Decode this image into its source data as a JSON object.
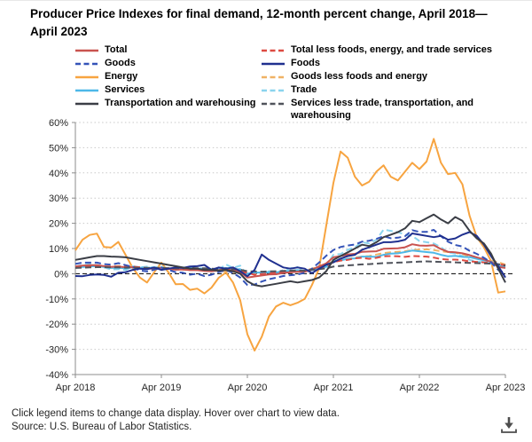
{
  "title": "Producer Price Indexes for final demand, 12-month percent change, April 2018—April 2023",
  "footer": {
    "note": "Click legend items to change data display. Hover over chart to view data.",
    "source": "Source: U.S. Bureau of Labor Statistics.",
    "download_icon": "download-icon"
  },
  "chart_data": {
    "type": "line",
    "title": "Producer Price Indexes for final demand, 12-month percent change, April 2018—April 2023",
    "xlabel": "",
    "ylabel": "12-month percent change",
    "x_unit": "monthly, Apr 2018 through Apr 2023 (61 points per series)",
    "x_ticks": [
      "Apr 2018",
      "Apr 2019",
      "Apr 2020",
      "Apr 2021",
      "Apr 2022",
      "Apr 2023"
    ],
    "y_ticks": [
      "60%",
      "50%",
      "40%",
      "30%",
      "20%",
      "10%",
      "0%",
      "-10%",
      "-20%",
      "-30%",
      "-40%"
    ],
    "ylim": [
      -40,
      60
    ],
    "grid": "dotted horizontal gridlines every 10%",
    "zero_line": "black dashed line at 0%",
    "legend_position": "top, two columns",
    "legend_columns": {
      "col1": [
        "total",
        "goods",
        "energy",
        "services",
        "transportation"
      ],
      "col2": [
        "total_less",
        "foods",
        "goods_less",
        "trade",
        "services_less"
      ]
    },
    "draw_order": [
      "energy",
      "goods_less",
      "trade",
      "services",
      "total_less",
      "total",
      "goods",
      "services_less",
      "foods",
      "transportation"
    ],
    "series": [
      {
        "key": "total",
        "name": "Total",
        "color": "#c9534f",
        "dashed": false,
        "values": [
          2.9,
          3.2,
          3.4,
          3.4,
          3.0,
          2.7,
          2.9,
          2.5,
          2.6,
          2.0,
          1.9,
          2.1,
          2.4,
          1.9,
          1.6,
          1.7,
          1.4,
          1.4,
          1.1,
          1.0,
          1.4,
          2.0,
          1.2,
          0.7,
          -1.5,
          -1.1,
          -0.7,
          -0.3,
          -0.2,
          0.3,
          0.6,
          0.8,
          0.8,
          1.6,
          2.9,
          4.1,
          6.5,
          7.0,
          7.6,
          7.9,
          8.7,
          8.8,
          8.9,
          9.9,
          10.0,
          10.1,
          10.5,
          11.7,
          11.2,
          11.1,
          11.3,
          9.8,
          8.7,
          8.5,
          8.1,
          7.4,
          6.5,
          5.7,
          4.7,
          2.7,
          2.3
        ]
      },
      {
        "key": "total_less",
        "name": "Total less foods, energy, and trade services",
        "color": "#dd4b42",
        "dashed": true,
        "values": [
          2.9,
          3.0,
          3.0,
          2.9,
          2.9,
          2.9,
          2.8,
          2.8,
          2.8,
          2.5,
          2.3,
          2.0,
          2.2,
          2.2,
          2.1,
          1.9,
          1.9,
          1.7,
          1.5,
          1.3,
          1.5,
          1.5,
          1.4,
          1.0,
          0.3,
          -0.4,
          -0.1,
          0.1,
          0.3,
          0.7,
          0.8,
          0.9,
          1.1,
          1.8,
          2.2,
          3.1,
          4.6,
          5.2,
          5.5,
          6.1,
          6.3,
          5.9,
          6.3,
          6.9,
          7.0,
          6.9,
          6.7,
          7.0,
          6.9,
          6.8,
          6.4,
          5.8,
          5.6,
          5.6,
          5.4,
          4.9,
          4.7,
          4.5,
          4.4,
          3.7,
          3.4
        ]
      },
      {
        "key": "goods",
        "name": "Goods",
        "color": "#3453b8",
        "dashed": true,
        "values": [
          3.9,
          4.4,
          4.4,
          4.4,
          3.8,
          3.6,
          4.2,
          3.4,
          2.7,
          1.3,
          0.9,
          1.6,
          2.4,
          1.5,
          0.6,
          0.4,
          -0.4,
          0.0,
          -0.9,
          -0.4,
          0.7,
          1.4,
          0.3,
          -1.5,
          -4.5,
          -4.3,
          -3.1,
          -2.2,
          -1.6,
          -0.9,
          -0.6,
          -0.3,
          0.4,
          2.0,
          4.4,
          7.1,
          9.4,
          10.6,
          11.2,
          11.6,
          12.7,
          13.1,
          13.8,
          14.9,
          14.1,
          14.3,
          14.9,
          17.3,
          16.6,
          16.6,
          17.4,
          14.9,
          12.7,
          11.4,
          10.8,
          9.1,
          7.9,
          6.3,
          4.5,
          1.5,
          0.2
        ]
      },
      {
        "key": "foods",
        "name": "Foods",
        "color": "#20308f",
        "dashed": false,
        "values": [
          -0.9,
          -1.0,
          -0.5,
          -0.3,
          -0.5,
          -1.2,
          0.4,
          0.6,
          1.5,
          2.0,
          1.8,
          2.5,
          1.5,
          2.0,
          2.5,
          2.3,
          2.9,
          3.0,
          3.5,
          1.5,
          2.5,
          2.0,
          2.5,
          1.0,
          -1.0,
          1.5,
          7.6,
          5.5,
          4.0,
          2.5,
          2.0,
          2.5,
          2.0,
          0.2,
          2.0,
          3.6,
          4.5,
          6.0,
          7.0,
          7.5,
          9.5,
          10.5,
          11.5,
          12.5,
          12.5,
          12.8,
          13.5,
          16.0,
          15.5,
          15.0,
          14.5,
          15.0,
          13.5,
          14.0,
          15.5,
          16.5,
          15.0,
          11.5,
          7.0,
          3.0,
          -1.5
        ]
      },
      {
        "key": "energy",
        "name": "Energy",
        "color": "#f7a440",
        "dashed": false,
        "values": [
          9.3,
          13.5,
          15.4,
          15.9,
          10.6,
          10.4,
          12.6,
          7.5,
          2.3,
          -1.5,
          -3.5,
          0.6,
          4.4,
          0.5,
          -4.2,
          -4.1,
          -6.4,
          -5.9,
          -7.8,
          -5.5,
          -1.6,
          0.5,
          -3.5,
          -10.5,
          -24.0,
          -30.5,
          -25.0,
          -17.0,
          -13.0,
          -11.5,
          -12.5,
          -11.5,
          -10.0,
          -4.5,
          2.0,
          19.0,
          36.0,
          48.5,
          46.0,
          38.5,
          35.0,
          36.5,
          40.5,
          43.0,
          38.5,
          37.0,
          40.5,
          44.0,
          41.5,
          44.5,
          53.5,
          44.0,
          39.5,
          40.0,
          35.5,
          23.0,
          14.5,
          10.5,
          5.0,
          -7.5,
          -7.0
        ]
      },
      {
        "key": "goods_less",
        "name": "Goods less foods and energy",
        "color": "#f0b264",
        "dashed": true,
        "values": [
          2.6,
          2.7,
          2.8,
          2.8,
          2.8,
          2.9,
          3.0,
          3.0,
          2.8,
          2.6,
          2.4,
          2.3,
          2.2,
          2.0,
          1.7,
          1.6,
          1.6,
          1.5,
          1.2,
          1.2,
          1.1,
          0.9,
          0.7,
          0.5,
          -0.1,
          0.1,
          0.1,
          0.3,
          0.5,
          0.7,
          0.8,
          1.0,
          1.2,
          2.0,
          2.9,
          4.0,
          4.8,
          5.3,
          5.9,
          6.4,
          6.8,
          7.0,
          7.6,
          8.2,
          8.5,
          8.7,
          8.9,
          9.4,
          9.6,
          9.7,
          9.4,
          8.9,
          8.6,
          8.3,
          7.8,
          6.8,
          6.0,
          5.5,
          5.2,
          4.6,
          3.6
        ]
      },
      {
        "key": "services",
        "name": "Services",
        "color": "#4db8e8",
        "dashed": false,
        "values": [
          2.5,
          2.7,
          2.9,
          3.0,
          2.7,
          2.3,
          2.4,
          2.1,
          2.5,
          2.4,
          2.4,
          2.3,
          2.4,
          2.1,
          2.1,
          2.4,
          2.3,
          2.0,
          2.1,
          1.8,
          1.7,
          2.3,
          1.7,
          1.8,
          0.0,
          0.5,
          0.4,
          0.6,
          0.5,
          0.9,
          1.2,
          1.4,
          1.1,
          1.4,
          2.2,
          2.7,
          5.0,
          5.3,
          5.9,
          6.1,
          6.8,
          6.8,
          6.7,
          7.5,
          8.0,
          8.1,
          8.6,
          9.2,
          8.9,
          8.6,
          8.3,
          7.5,
          6.9,
          7.1,
          6.7,
          6.6,
          5.9,
          5.3,
          4.8,
          3.4,
          2.9
        ]
      },
      {
        "key": "trade",
        "name": "Trade",
        "color": "#8ad4ee",
        "dashed": true,
        "values": [
          2.8,
          3.5,
          3.7,
          3.5,
          2.5,
          1.7,
          1.8,
          1.4,
          3.0,
          2.5,
          2.8,
          2.5,
          2.8,
          1.7,
          1.9,
          2.5,
          2.2,
          1.5,
          1.7,
          1.4,
          1.6,
          3.7,
          2.3,
          3.2,
          -0.7,
          0.8,
          0.3,
          1.0,
          0.4,
          1.4,
          2.2,
          2.6,
          1.4,
          1.6,
          3.0,
          3.2,
          7.5,
          7.8,
          9.5,
          10.5,
          12.5,
          12.0,
          13.5,
          17.5,
          17.0,
          16.5,
          15.5,
          15.0,
          13.0,
          12.5,
          12.0,
          10.5,
          8.5,
          8.0,
          7.0,
          5.5,
          4.8,
          4.5,
          4.0,
          3.0,
          2.5
        ]
      },
      {
        "key": "transportation",
        "name": "Transportation and warehousing",
        "color": "#3b3e46",
        "dashed": false,
        "values": [
          5.5,
          6.0,
          6.5,
          7.0,
          7.0,
          6.8,
          6.7,
          6.5,
          6.0,
          5.5,
          5.0,
          4.5,
          4.0,
          3.5,
          3.0,
          2.5,
          2.0,
          2.0,
          1.5,
          1.5,
          1.2,
          1.5,
          1.0,
          0.0,
          -3.0,
          -4.5,
          -5.0,
          -4.5,
          -4.0,
          -3.5,
          -3.0,
          -3.5,
          -3.0,
          -2.5,
          -1.5,
          1.0,
          5.5,
          7.0,
          8.5,
          10.0,
          11.5,
          11.0,
          12.5,
          14.5,
          15.5,
          16.5,
          18.0,
          21.0,
          20.5,
          22.0,
          23.5,
          21.5,
          20.0,
          22.5,
          21.0,
          17.0,
          14.0,
          12.0,
          8.0,
          2.0,
          -3.5
        ]
      },
      {
        "key": "services_less",
        "name": "Services less trade, transportation, and warehousing",
        "color": "#50535b",
        "dashed": true,
        "values": [
          2.3,
          2.4,
          2.5,
          2.6,
          2.6,
          2.5,
          2.5,
          2.4,
          2.5,
          2.3,
          2.3,
          2.2,
          2.3,
          2.2,
          2.1,
          2.2,
          2.3,
          2.2,
          2.2,
          2.0,
          1.9,
          2.1,
          1.8,
          1.6,
          1.0,
          0.9,
          0.8,
          0.9,
          1.0,
          1.1,
          1.2,
          1.3,
          1.2,
          1.6,
          1.8,
          2.1,
          2.8,
          3.1,
          3.3,
          3.5,
          3.7,
          3.8,
          4.0,
          4.2,
          4.3,
          4.4,
          4.5,
          4.7,
          4.8,
          4.9,
          4.8,
          4.7,
          4.6,
          4.5,
          4.4,
          4.3,
          4.2,
          4.1,
          4.0,
          3.8,
          3.2
        ]
      }
    ]
  }
}
